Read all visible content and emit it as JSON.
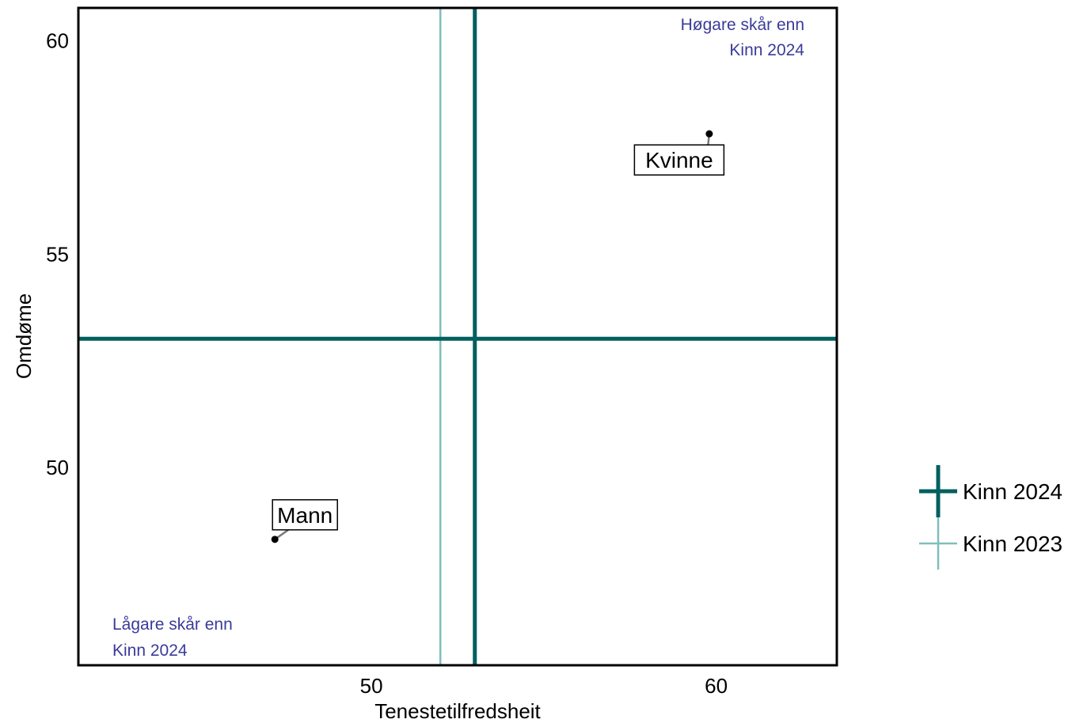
{
  "chart_data": {
    "type": "scatter",
    "xlabel": "Tenestetilfredsheit",
    "ylabel": "Omdøme",
    "xlim": [
      41.5,
      63.5
    ],
    "ylim": [
      45.35,
      60.75
    ],
    "x_ticks": [
      50,
      60
    ],
    "y_ticks": [
      50,
      55,
      60
    ],
    "points": [
      {
        "label": "Kvinne",
        "x": 59.8,
        "y": 57.8
      },
      {
        "label": "Mann",
        "x": 47.2,
        "y": 48.3
      }
    ],
    "reference_lines": [
      {
        "name": "Kinn 2024",
        "x": 53.0,
        "y": 53.0,
        "color": "#005f5f"
      },
      {
        "name": "Kinn 2023",
        "x": 52.0,
        "color": "#7fbfb9"
      }
    ],
    "annotations": {
      "top_right": [
        "Høgare skår enn",
        "Kinn 2024"
      ],
      "bottom_left": [
        "Lågare skår enn",
        "Kinn 2024"
      ],
      "color": "#3b3b9a"
    },
    "legend": {
      "position": "right",
      "entries": [
        "Kinn 2024",
        "Kinn 2023"
      ]
    },
    "grid": false
  }
}
